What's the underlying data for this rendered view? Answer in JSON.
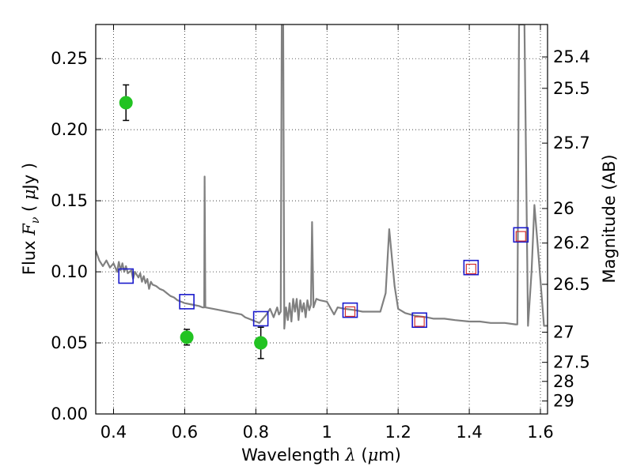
{
  "chart_data": {
    "type": "scatter",
    "xlabel": {
      "prefix": "Wavelength  ",
      "lambda": "λ",
      "suffix": " (",
      "mu": "μ",
      "unit": "m)"
    },
    "ylabel": {
      "prefix": "Flux  ",
      "F": "F",
      "nu": "ν",
      "mid": "  ( ",
      "mu": "μ",
      "unit": "Jy )"
    },
    "y2label": "Magnitude (AB)",
    "xlim": [
      0.35,
      1.62
    ],
    "ylim": [
      0.0,
      0.274
    ],
    "xticks": [
      0.4,
      0.6,
      0.8,
      1.0,
      1.2,
      1.4,
      1.6
    ],
    "xtick_labels": [
      "0.4",
      "0.6",
      "0.8",
      "1",
      "1.2",
      "1.4",
      "1.6"
    ],
    "yticks": [
      0.0,
      0.05,
      0.1,
      0.15,
      0.2,
      0.25
    ],
    "ytick_labels": [
      "0.00",
      "0.05",
      "0.10",
      "0.15",
      "0.20",
      "0.25"
    ],
    "mag_ticks": [
      {
        "mag": 25.4,
        "label": "25.4"
      },
      {
        "mag": 25.5,
        "label": "25.5"
      },
      {
        "mag": 25.7,
        "label": "25.7"
      },
      {
        "mag": 26.0,
        "label": "26"
      },
      {
        "mag": 26.2,
        "label": "26.2"
      },
      {
        "mag": 26.5,
        "label": "26.5"
      },
      {
        "mag": 27.0,
        "label": "27"
      },
      {
        "mag": 27.5,
        "label": "27.5"
      },
      {
        "mag": 28.0,
        "label": "28"
      },
      {
        "mag": 29.0,
        "label": "29"
      }
    ],
    "grid": true,
    "colors": {
      "model": "#808080",
      "observed": "#22c322",
      "model_box": "#1a1acc",
      "fit_box": "#d43030",
      "errorbar": "#000000"
    },
    "series": [
      {
        "kind": "line",
        "points": [
          [
            0.35,
            0.115
          ],
          [
            0.36,
            0.108
          ],
          [
            0.37,
            0.104
          ],
          [
            0.38,
            0.108
          ],
          [
            0.39,
            0.103
          ],
          [
            0.4,
            0.106
          ],
          [
            0.41,
            0.1
          ],
          [
            0.415,
            0.107
          ],
          [
            0.42,
            0.101
          ],
          [
            0.425,
            0.106
          ],
          [
            0.43,
            0.1
          ],
          [
            0.435,
            0.104
          ],
          [
            0.44,
            0.099
          ],
          [
            0.45,
            0.101
          ],
          [
            0.455,
            0.095
          ],
          [
            0.46,
            0.1
          ],
          [
            0.47,
            0.096
          ],
          [
            0.475,
            0.099
          ],
          [
            0.48,
            0.093
          ],
          [
            0.485,
            0.097
          ],
          [
            0.49,
            0.092
          ],
          [
            0.495,
            0.095
          ],
          [
            0.5,
            0.088
          ],
          [
            0.505,
            0.093
          ],
          [
            0.51,
            0.091
          ],
          [
            0.52,
            0.09
          ],
          [
            0.53,
            0.088
          ],
          [
            0.54,
            0.087
          ],
          [
            0.55,
            0.085
          ],
          [
            0.56,
            0.083
          ],
          [
            0.57,
            0.082
          ],
          [
            0.58,
            0.08
          ],
          [
            0.59,
            0.079
          ],
          [
            0.6,
            0.078
          ],
          [
            0.62,
            0.077
          ],
          [
            0.64,
            0.076
          ],
          [
            0.65,
            0.075
          ],
          [
            0.655,
            0.075
          ],
          [
            0.656,
            0.167
          ],
          [
            0.658,
            0.075
          ],
          [
            0.68,
            0.074
          ],
          [
            0.7,
            0.073
          ],
          [
            0.72,
            0.072
          ],
          [
            0.74,
            0.071
          ],
          [
            0.76,
            0.07
          ],
          [
            0.77,
            0.068
          ],
          [
            0.78,
            0.067
          ],
          [
            0.79,
            0.066
          ],
          [
            0.8,
            0.065
          ],
          [
            0.81,
            0.064
          ],
          [
            0.83,
            0.07
          ],
          [
            0.84,
            0.074
          ],
          [
            0.85,
            0.068
          ],
          [
            0.86,
            0.075
          ],
          [
            0.865,
            0.07
          ],
          [
            0.87,
            0.072
          ],
          [
            0.873,
            0.274
          ],
          [
            0.877,
            0.274
          ],
          [
            0.88,
            0.06
          ],
          [
            0.885,
            0.075
          ],
          [
            0.89,
            0.066
          ],
          [
            0.895,
            0.078
          ],
          [
            0.9,
            0.065
          ],
          [
            0.905,
            0.081
          ],
          [
            0.91,
            0.072
          ],
          [
            0.915,
            0.081
          ],
          [
            0.92,
            0.066
          ],
          [
            0.925,
            0.08
          ],
          [
            0.93,
            0.072
          ],
          [
            0.935,
            0.078
          ],
          [
            0.94,
            0.068
          ],
          [
            0.945,
            0.08
          ],
          [
            0.95,
            0.073
          ],
          [
            0.955,
            0.077
          ],
          [
            0.958,
            0.135
          ],
          [
            0.962,
            0.075
          ],
          [
            0.97,
            0.081
          ],
          [
            0.98,
            0.08
          ],
          [
            1.0,
            0.079
          ],
          [
            1.02,
            0.07
          ],
          [
            1.03,
            0.075
          ],
          [
            1.05,
            0.074
          ],
          [
            1.08,
            0.073
          ],
          [
            1.1,
            0.072
          ],
          [
            1.13,
            0.072
          ],
          [
            1.15,
            0.072
          ],
          [
            1.165,
            0.085
          ],
          [
            1.175,
            0.13
          ],
          [
            1.19,
            0.09
          ],
          [
            1.2,
            0.074
          ],
          [
            1.22,
            0.071
          ],
          [
            1.25,
            0.069
          ],
          [
            1.28,
            0.068
          ],
          [
            1.3,
            0.067
          ],
          [
            1.33,
            0.067
          ],
          [
            1.36,
            0.066
          ],
          [
            1.4,
            0.065
          ],
          [
            1.43,
            0.065
          ],
          [
            1.46,
            0.064
          ],
          [
            1.5,
            0.064
          ],
          [
            1.53,
            0.063
          ],
          [
            1.535,
            0.063
          ],
          [
            1.54,
            0.274
          ],
          [
            1.555,
            0.274
          ],
          [
            1.565,
            0.062
          ],
          [
            1.575,
            0.1
          ],
          [
            1.583,
            0.147
          ],
          [
            1.595,
            0.11
          ],
          [
            1.61,
            0.062
          ],
          [
            1.62,
            0.062
          ]
        ]
      },
      {
        "kind": "errorbar-points",
        "points": [
          {
            "x": 0.435,
            "y": 0.219,
            "err": 0.0125
          },
          {
            "x": 0.606,
            "y": 0.054,
            "err": 0.0055
          },
          {
            "x": 0.814,
            "y": 0.05,
            "err": 0.011
          }
        ]
      },
      {
        "kind": "box-markers",
        "points": [
          {
            "x": 0.435,
            "y": 0.097
          },
          {
            "x": 0.606,
            "y": 0.079
          },
          {
            "x": 0.814,
            "y": 0.067
          },
          {
            "x": 1.065,
            "y": 0.073
          },
          {
            "x": 1.26,
            "y": 0.066
          },
          {
            "x": 1.405,
            "y": 0.103
          },
          {
            "x": 1.545,
            "y": 0.126
          }
        ]
      },
      {
        "kind": "box-markers",
        "points": [
          {
            "x": 1.065,
            "y": 0.072
          },
          {
            "x": 1.26,
            "y": 0.065
          },
          {
            "x": 1.405,
            "y": 0.102
          },
          {
            "x": 1.545,
            "y": 0.125
          }
        ]
      }
    ]
  }
}
